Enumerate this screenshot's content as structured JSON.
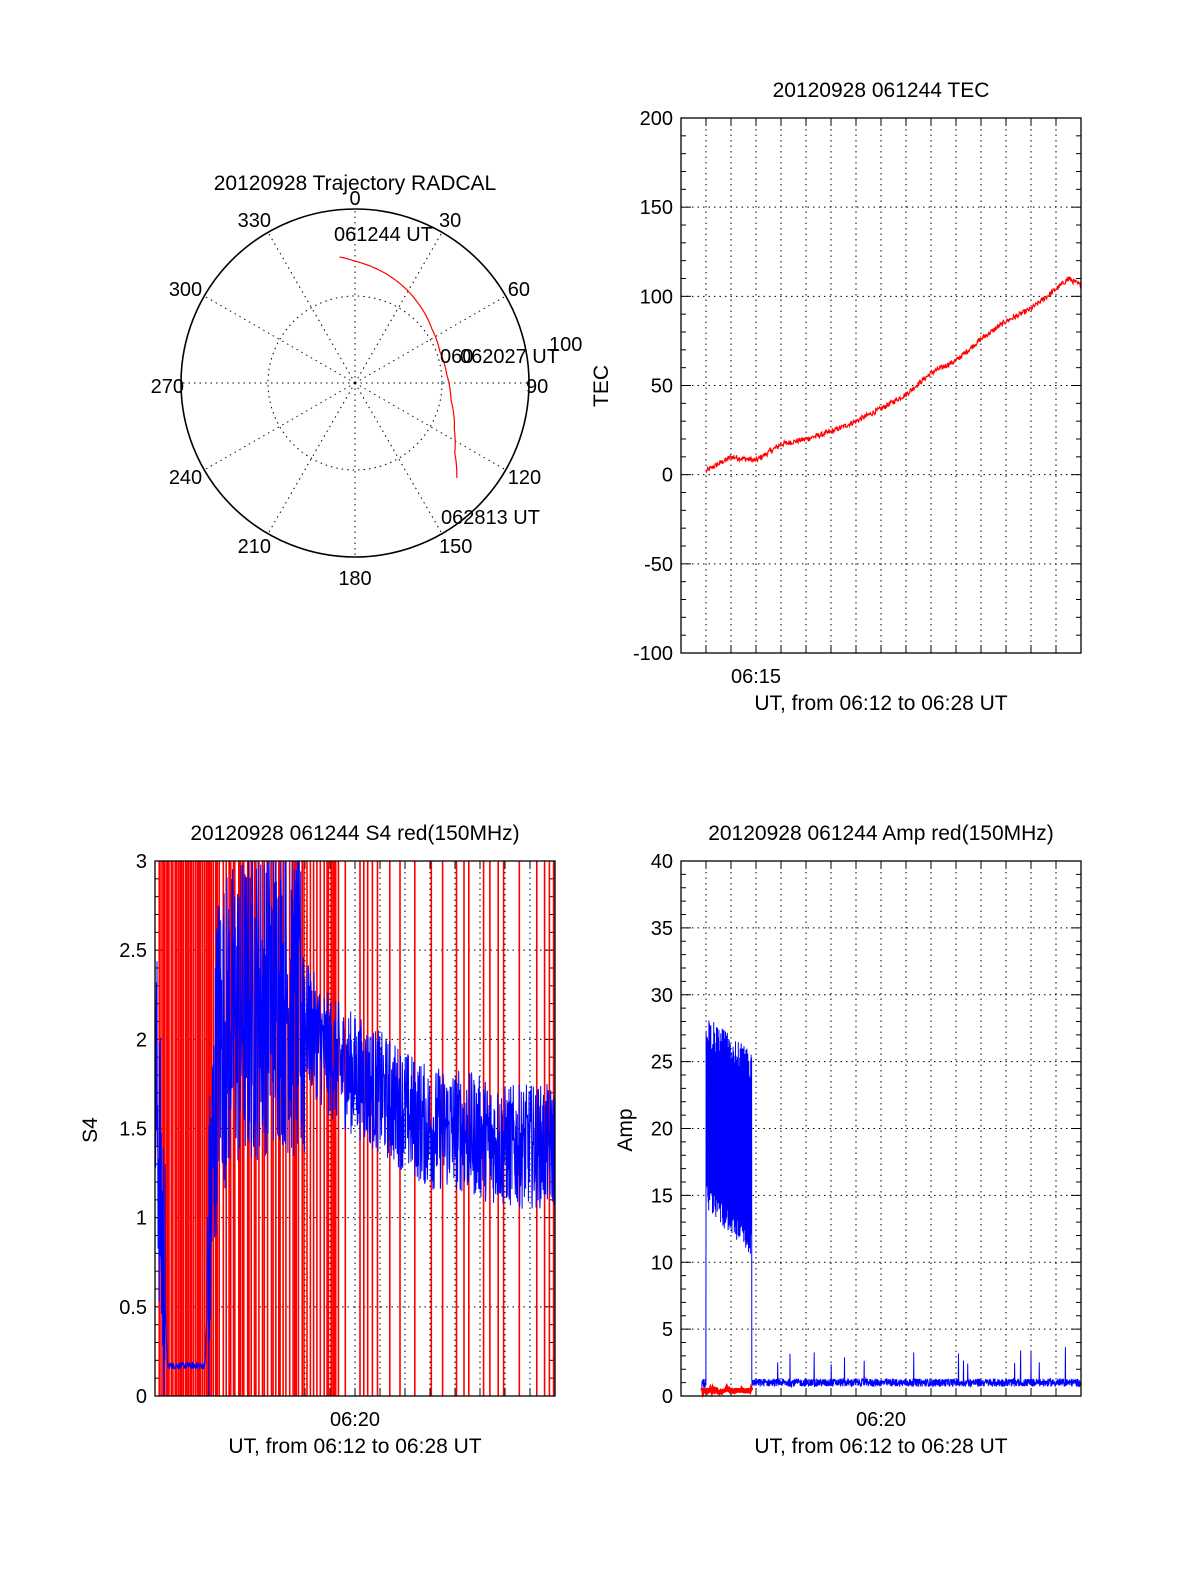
{
  "figure": {
    "polar": {
      "title": "20120928 Trajectory RADCAL",
      "azimuth_labels": [
        "0",
        "30",
        "60",
        "90",
        "120",
        "150",
        "180",
        "210",
        "240",
        "270",
        "300",
        "330"
      ],
      "radius_label": "100",
      "annotations": {
        "start": "061244 UT",
        "mid": "062027 UT",
        "mid_overlap": "060",
        "end": "062813 UT"
      }
    },
    "tec": {
      "title": "20120928 061244 TEC",
      "ylabel": "TEC",
      "xlabel": "UT, from 06:12 to 06:28 UT",
      "xticklabels": [
        "06:15"
      ],
      "yticklabels": [
        "200",
        "150",
        "100",
        "50",
        "0",
        "-50",
        "-100"
      ]
    },
    "s4": {
      "title": "20120928 061244 S4 red(150MHz)",
      "ylabel": "S4",
      "xlabel": "UT, from 06:12 to 06:28 UT",
      "xticklabels": [
        "06:20"
      ],
      "yticklabels": [
        "3",
        "2.5",
        "2",
        "1.5",
        "1",
        "0.5",
        "0"
      ]
    },
    "amp": {
      "title": "20120928 061244 Amp red(150MHz)",
      "ylabel": "Amp",
      "xlabel": "UT, from 06:12 to 06:28 UT",
      "xticklabels": [
        "06:20"
      ],
      "yticklabels": [
        "40",
        "35",
        "30",
        "25",
        "20",
        "15",
        "10",
        "5",
        "0"
      ]
    }
  },
  "colors": {
    "red": "#ff0000",
    "blue": "#0000ff",
    "axes": "#000000"
  },
  "chart_data": [
    {
      "type": "line",
      "subtype": "polar-trajectory",
      "title": "20120928 Trajectory RADCAL",
      "theta_direction": "clockwise from north",
      "r_max": 100,
      "grid": true,
      "series": [
        {
          "color": "#ff0000",
          "points_az_r": [
            [
              -7,
              73
            ],
            [
              0,
              70
            ],
            [
              10,
              67
            ],
            [
              20,
              64
            ],
            [
              30,
              61
            ],
            [
              40,
              58
            ],
            [
              55,
              54
            ],
            [
              70,
              52
            ],
            [
              85,
              53
            ],
            [
              100,
              56
            ],
            [
              115,
              63
            ],
            [
              125,
              70
            ],
            [
              133,
              80
            ]
          ]
        }
      ],
      "annotations": [
        {
          "text": "061244 UT",
          "az": -7,
          "r": 73
        },
        {
          "text": "062027 UT",
          "az": 77,
          "r": 50
        },
        {
          "text": "062813 UT",
          "az": 133,
          "r": 80
        }
      ]
    },
    {
      "type": "line",
      "title": "20120928 061244 TEC",
      "xlabel": "UT, from 06:12 to 06:28 UT",
      "ylabel": "TEC",
      "xlim": [
        "06:12",
        "06:28"
      ],
      "ylim": [
        -100,
        200
      ],
      "grid": true,
      "series": [
        {
          "color": "#ff0000",
          "x": [
            "06:13:00",
            "06:14:00",
            "06:15:00",
            "06:16:00",
            "06:17:00",
            "06:18:00",
            "06:19:00",
            "06:20:00",
            "06:21:00",
            "06:22:00",
            "06:23:00",
            "06:24:00",
            "06:25:00",
            "06:26:00",
            "06:27:00",
            "06:27:30",
            "06:28:00"
          ],
          "y": [
            2,
            10,
            8,
            17,
            20,
            24,
            30,
            37,
            45,
            57,
            64,
            76,
            86,
            93,
            104,
            110,
            106
          ]
        }
      ]
    },
    {
      "type": "line",
      "title": "20120928 061244 S4 red(150MHz)",
      "xlabel": "UT, from 06:12 to 06:28 UT",
      "ylabel": "S4",
      "xlim": [
        "06:12",
        "06:28"
      ],
      "ylim": [
        0,
        3
      ],
      "grid": true,
      "series": [
        {
          "color": "#0000ff",
          "x": [
            "06:12:00",
            "06:12:30",
            "06:14:00",
            "06:14:30",
            "06:15:00",
            "06:16:00",
            "06:17:00",
            "06:18:00",
            "06:19:00",
            "06:20:00",
            "06:21:00",
            "06:22:00",
            "06:23:00",
            "06:24:00",
            "06:25:00",
            "06:26:00",
            "06:27:00",
            "06:28:00"
          ],
          "y": [
            1.9,
            0.17,
            0.17,
            2.0,
            2.1,
            2.2,
            2.3,
            2.1,
            1.9,
            1.8,
            1.7,
            1.6,
            1.5,
            1.5,
            1.45,
            1.4,
            1.4,
            1.4
          ]
        },
        {
          "color": "#ff0000",
          "style": "vertical spikes",
          "range": [
            0,
            3
          ]
        }
      ]
    },
    {
      "type": "line",
      "title": "20120928 061244 Amp red(150MHz)",
      "xlabel": "UT, from 06:12 to 06:28 UT",
      "ylabel": "Amp",
      "xlim": [
        "06:12",
        "06:28"
      ],
      "ylim": [
        0,
        40
      ],
      "grid": true,
      "series": [
        {
          "color": "#0000ff",
          "x": [
            "06:12:00",
            "06:12:50",
            "06:13:00",
            "06:14:00",
            "06:14:50",
            "06:15:00",
            "06:17:00",
            "06:20:00",
            "06:23:00",
            "06:26:00",
            "06:28:00"
          ],
          "y": [
            0.5,
            1.2,
            20,
            20,
            19,
            1.0,
            1.0,
            1.0,
            1.0,
            1.0,
            1.0
          ]
        },
        {
          "color": "#ff0000",
          "x": [
            "06:12:50",
            "06:14:50"
          ],
          "y": [
            0.4,
            0.4
          ]
        }
      ]
    }
  ]
}
